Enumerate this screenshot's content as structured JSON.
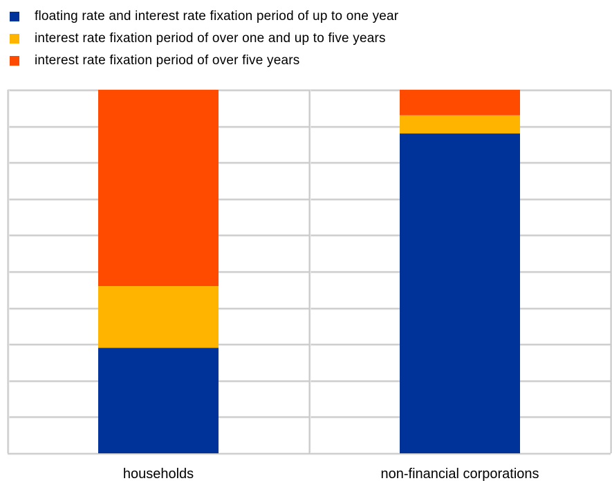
{
  "chart_data": {
    "type": "bar",
    "stacked": true,
    "percent_stacked": true,
    "categories": [
      "households",
      "non-financial corporations"
    ],
    "series": [
      {
        "name": "floating rate and interest rate fixation period of up to one year",
        "color": "#003399",
        "values": [
          29,
          88
        ]
      },
      {
        "name": "interest rate fixation period of over one and up to five years",
        "color": "#FFB400",
        "values": [
          17,
          5
        ]
      },
      {
        "name": "interest rate fixation period of over five years",
        "color": "#FF4B00",
        "values": [
          54,
          7
        ]
      }
    ],
    "ylim": [
      0,
      100
    ],
    "y_gridlines": [
      0,
      10,
      20,
      30,
      40,
      50,
      60,
      70,
      80,
      90,
      100
    ],
    "grid": true,
    "legend": "top-left"
  }
}
